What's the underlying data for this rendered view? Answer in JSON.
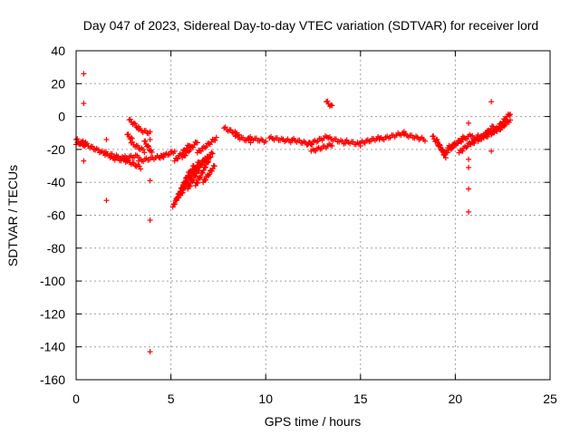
{
  "chart_data": {
    "type": "scatter",
    "title": "Day 047 of 2023, Sidereal Day-to-day VTEC variation (SDTVAR) for receiver lord",
    "xlabel": "GPS time / hours",
    "ylabel": "SDTVAR / TECUs",
    "xlim": [
      0,
      25
    ],
    "ylim": [
      -160,
      40
    ],
    "xticks": [
      0,
      5,
      10,
      15,
      20,
      25
    ],
    "yticks": [
      -160,
      -140,
      -120,
      -100,
      -80,
      -60,
      -40,
      -20,
      0,
      20,
      40
    ],
    "grid": true,
    "marker": "+",
    "color": "#ff0000",
    "segments": [
      {
        "x0": 0.0,
        "y0": -14,
        "x1": 0.5,
        "y1": -18
      },
      {
        "x0": 0.0,
        "y0": -17,
        "x1": 0.5,
        "y1": -15
      },
      {
        "x0": 0.5,
        "y0": -17,
        "x1": 1.6,
        "y1": -23
      },
      {
        "x0": 1.5,
        "y0": -22,
        "x1": 2.6,
        "y1": -26
      },
      {
        "x0": 1.8,
        "y0": -25,
        "x1": 2.7,
        "y1": -27
      },
      {
        "x0": 2.5,
        "y0": -25,
        "x1": 3.3,
        "y1": -24
      },
      {
        "x0": 2.7,
        "y0": -27,
        "x1": 3.4,
        "y1": -31
      },
      {
        "x0": 3.3,
        "y0": -27,
        "x1": 4.6,
        "y1": -24
      },
      {
        "x0": 4.4,
        "y0": -25,
        "x1": 5.2,
        "y1": -21
      },
      {
        "x0": 2.8,
        "y0": -2,
        "x1": 3.3,
        "y1": -7
      },
      {
        "x0": 3.3,
        "y0": -8,
        "x1": 3.9,
        "y1": -10
      },
      {
        "x0": 2.7,
        "y0": -11,
        "x1": 2.95,
        "y1": -14
      },
      {
        "x0": 2.9,
        "y0": -16,
        "x1": 3.6,
        "y1": -21
      },
      {
        "x0": 3.6,
        "y0": -15,
        "x1": 4.0,
        "y1": -22
      },
      {
        "x0": 5.1,
        "y0": -55,
        "x1": 6.0,
        "y1": -33
      },
      {
        "x0": 5.3,
        "y0": -51,
        "x1": 6.2,
        "y1": -30
      },
      {
        "x0": 5.5,
        "y0": -48,
        "x1": 6.5,
        "y1": -27
      },
      {
        "x0": 5.9,
        "y0": -44,
        "x1": 6.8,
        "y1": -25
      },
      {
        "x0": 6.3,
        "y0": -42,
        "x1": 7.1,
        "y1": -24
      },
      {
        "x0": 6.7,
        "y0": -40,
        "x1": 7.3,
        "y1": -30
      },
      {
        "x0": 6.2,
        "y0": -33,
        "x1": 7.2,
        "y1": -22
      },
      {
        "x0": 5.2,
        "y0": -27,
        "x1": 6.0,
        "y1": -17
      },
      {
        "x0": 5.6,
        "y0": -25,
        "x1": 6.4,
        "y1": -15
      },
      {
        "x0": 6.4,
        "y0": -22,
        "x1": 7.4,
        "y1": -13
      },
      {
        "x0": 7.8,
        "y0": -7,
        "x1": 8.6,
        "y1": -11
      },
      {
        "x0": 8.4,
        "y0": -12,
        "x1": 9.2,
        "y1": -15
      },
      {
        "x0": 9.1,
        "y0": -13,
        "x1": 10.0,
        "y1": -15
      },
      {
        "x0": 10.2,
        "y0": -13,
        "x1": 11.4,
        "y1": -15
      },
      {
        "x0": 11.4,
        "y0": -14,
        "x1": 12.4,
        "y1": -17
      },
      {
        "x0": 12.2,
        "y0": -17,
        "x1": 13.3,
        "y1": -12
      },
      {
        "x0": 12.4,
        "y0": -21,
        "x1": 13.5,
        "y1": -17
      },
      {
        "x0": 13.3,
        "y0": -13,
        "x1": 14.2,
        "y1": -16
      },
      {
        "x0": 14.2,
        "y0": -15,
        "x1": 15.0,
        "y1": -17
      },
      {
        "x0": 15.0,
        "y0": -16,
        "x1": 16.0,
        "y1": -13
      },
      {
        "x0": 16.0,
        "y0": -14,
        "x1": 17.3,
        "y1": -10
      },
      {
        "x0": 17.3,
        "y0": -11,
        "x1": 18.4,
        "y1": -14
      },
      {
        "x0": 13.2,
        "y0": 9,
        "x1": 13.5,
        "y1": 6
      },
      {
        "x0": 18.8,
        "y0": -12,
        "x1": 19.4,
        "y1": -22
      },
      {
        "x0": 19.0,
        "y0": -14,
        "x1": 19.5,
        "y1": -25
      },
      {
        "x0": 19.4,
        "y0": -23,
        "x1": 20.4,
        "y1": -13
      },
      {
        "x0": 19.6,
        "y0": -19,
        "x1": 20.9,
        "y1": -11
      },
      {
        "x0": 20.2,
        "y0": -22,
        "x1": 21.2,
        "y1": -12
      },
      {
        "x0": 20.8,
        "y0": -17,
        "x1": 21.8,
        "y1": -9
      },
      {
        "x0": 21.2,
        "y0": -15,
        "x1": 22.0,
        "y1": -6
      },
      {
        "x0": 21.5,
        "y0": -13,
        "x1": 22.6,
        "y1": -5
      },
      {
        "x0": 21.9,
        "y0": -11,
        "x1": 22.9,
        "y1": 2
      },
      {
        "x0": 22.2,
        "y0": -9,
        "x1": 22.9,
        "y1": -2
      }
    ],
    "outliers": [
      {
        "x": 0.4,
        "y": 26
      },
      {
        "x": 0.4,
        "y": 8
      },
      {
        "x": 0.4,
        "y": -27
      },
      {
        "x": 1.6,
        "y": -14
      },
      {
        "x": 1.6,
        "y": -51
      },
      {
        "x": 3.9,
        "y": -14
      },
      {
        "x": 3.9,
        "y": -39
      },
      {
        "x": 3.9,
        "y": -63
      },
      {
        "x": 3.9,
        "y": -143
      },
      {
        "x": 20.7,
        "y": -4
      },
      {
        "x": 20.7,
        "y": -26
      },
      {
        "x": 20.7,
        "y": -31
      },
      {
        "x": 20.7,
        "y": -44
      },
      {
        "x": 20.7,
        "y": -58
      },
      {
        "x": 21.9,
        "y": 9
      },
      {
        "x": 21.9,
        "y": -21
      }
    ]
  }
}
